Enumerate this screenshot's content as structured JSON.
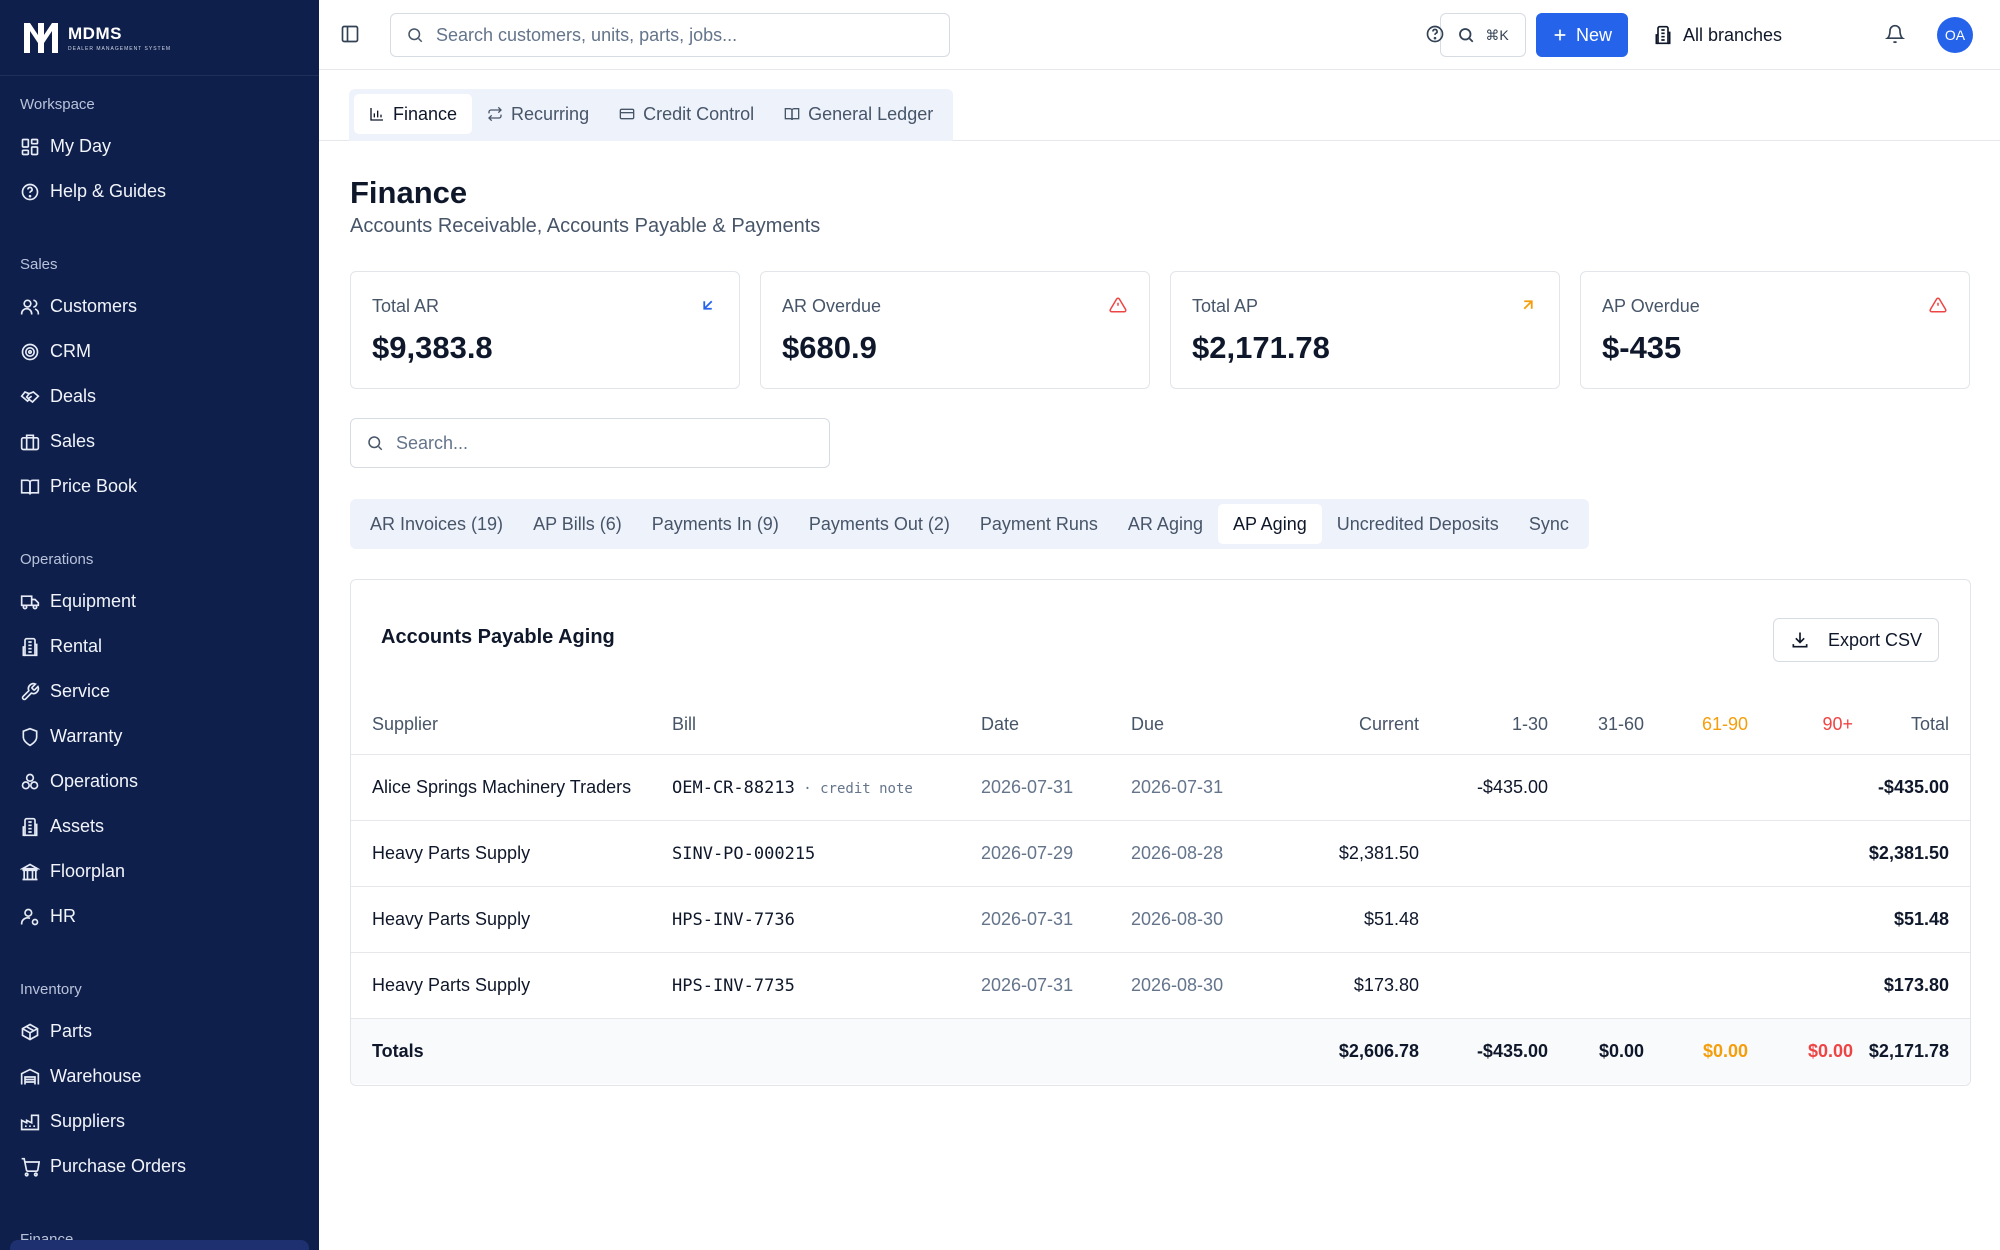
{
  "app": {
    "name": "MDMS",
    "tagline": "DEALER MANAGEMENT SYSTEM"
  },
  "sidebar": {
    "sections": [
      {
        "title": "Workspace",
        "items": [
          {
            "label": "My Day",
            "icon": "dashboard-icon"
          },
          {
            "label": "Help & Guides",
            "icon": "help-circle-icon"
          }
        ]
      },
      {
        "title": "Sales",
        "items": [
          {
            "label": "Customers",
            "icon": "users-icon"
          },
          {
            "label": "CRM",
            "icon": "target-icon"
          },
          {
            "label": "Deals",
            "icon": "handshake-icon"
          },
          {
            "label": "Sales",
            "icon": "briefcase-icon"
          },
          {
            "label": "Price Book",
            "icon": "book-icon"
          }
        ]
      },
      {
        "title": "Operations",
        "items": [
          {
            "label": "Equipment",
            "icon": "truck-icon"
          },
          {
            "label": "Rental",
            "icon": "building-icon"
          },
          {
            "label": "Service",
            "icon": "wrench-icon"
          },
          {
            "label": "Warranty",
            "icon": "shield-icon"
          },
          {
            "label": "Operations",
            "icon": "cog-cluster-icon"
          },
          {
            "label": "Assets",
            "icon": "building-icon"
          },
          {
            "label": "Floorplan",
            "icon": "bank-icon"
          },
          {
            "label": "HR",
            "icon": "user-cog-icon"
          }
        ]
      },
      {
        "title": "Inventory",
        "items": [
          {
            "label": "Parts",
            "icon": "package-icon"
          },
          {
            "label": "Warehouse",
            "icon": "warehouse-icon"
          },
          {
            "label": "Suppliers",
            "icon": "factory-icon"
          },
          {
            "label": "Purchase Orders",
            "icon": "cart-icon"
          }
        ]
      },
      {
        "title": "Finance",
        "items": []
      }
    ]
  },
  "topbar": {
    "search_placeholder": "Search customers, units, parts, jobs...",
    "shortcut": "⌘K",
    "new_label": "New",
    "branch_label": "All branches",
    "avatar_initials": "OA"
  },
  "module_tabs": [
    {
      "label": "Finance",
      "icon": "bar-chart-icon",
      "active": true
    },
    {
      "label": "Recurring",
      "icon": "repeat-icon",
      "active": false
    },
    {
      "label": "Credit Control",
      "icon": "credit-card-icon",
      "active": false
    },
    {
      "label": "General Ledger",
      "icon": "book-open-icon",
      "active": false
    }
  ],
  "page": {
    "title": "Finance",
    "subtitle": "Accounts Receivable, Accounts Payable & Payments"
  },
  "kpis": [
    {
      "label": "Total AR",
      "value": "$9,383.8",
      "icon": "arrow-down-left-icon",
      "color": "#2563eb"
    },
    {
      "label": "AR Overdue",
      "value": "$680.9",
      "icon": "alert-triangle-icon",
      "color": "#ef4444"
    },
    {
      "label": "Total AP",
      "value": "$2,171.78",
      "icon": "arrow-up-right-icon",
      "color": "#f59e0b"
    },
    {
      "label": "AP Overdue",
      "value": "$-435",
      "icon": "alert-triangle-icon",
      "color": "#ef4444"
    }
  ],
  "search": {
    "placeholder": "Search..."
  },
  "sub_tabs": [
    {
      "label": "AR Invoices (19)",
      "active": false
    },
    {
      "label": "AP Bills (6)",
      "active": false
    },
    {
      "label": "Payments In (9)",
      "active": false
    },
    {
      "label": "Payments Out (2)",
      "active": false
    },
    {
      "label": "Payment Runs",
      "active": false
    },
    {
      "label": "AR Aging",
      "active": false
    },
    {
      "label": "AP Aging",
      "active": true
    },
    {
      "label": "Uncredited Deposits",
      "active": false
    },
    {
      "label": "Sync",
      "active": false
    }
  ],
  "aging": {
    "title": "Accounts Payable Aging",
    "export_label": "Export CSV",
    "columns": {
      "supplier": "Supplier",
      "bill": "Bill",
      "date": "Date",
      "due": "Due",
      "current": "Current",
      "b1_30": "1-30",
      "b31_60": "31-60",
      "b61_90": "61-90",
      "b90": "90+",
      "total": "Total"
    },
    "rows": [
      {
        "supplier": "Alice Springs Machinery Traders",
        "bill": "OEM-CR-88213",
        "note": "credit note",
        "date": "2026-07-31",
        "due": "2026-07-31",
        "current": "",
        "b1_30": "-$435.00",
        "b31_60": "",
        "b61_90": "",
        "b90": "",
        "total": "-$435.00"
      },
      {
        "supplier": "Heavy Parts Supply",
        "bill": "SINV-PO-000215",
        "note": "",
        "date": "2026-07-29",
        "due": "2026-08-28",
        "current": "$2,381.50",
        "b1_30": "",
        "b31_60": "",
        "b61_90": "",
        "b90": "",
        "total": "$2,381.50"
      },
      {
        "supplier": "Heavy Parts Supply",
        "bill": "HPS-INV-7736",
        "note": "",
        "date": "2026-07-31",
        "due": "2026-08-30",
        "current": "$51.48",
        "b1_30": "",
        "b31_60": "",
        "b61_90": "",
        "b90": "",
        "total": "$51.48"
      },
      {
        "supplier": "Heavy Parts Supply",
        "bill": "HPS-INV-7735",
        "note": "",
        "date": "2026-07-31",
        "due": "2026-08-30",
        "current": "$173.80",
        "b1_30": "",
        "b31_60": "",
        "b61_90": "",
        "b90": "",
        "total": "$173.80"
      }
    ],
    "totals": {
      "label": "Totals",
      "current": "$2,606.78",
      "b1_30": "-$435.00",
      "b31_60": "$0.00",
      "b61_90": "$0.00",
      "b90": "$0.00",
      "total": "$2,171.78"
    }
  },
  "colors": {
    "sidebar_bg": "#0f1f4b",
    "accent": "#2563eb",
    "amber": "#f59e0b",
    "red": "#ef4444"
  }
}
